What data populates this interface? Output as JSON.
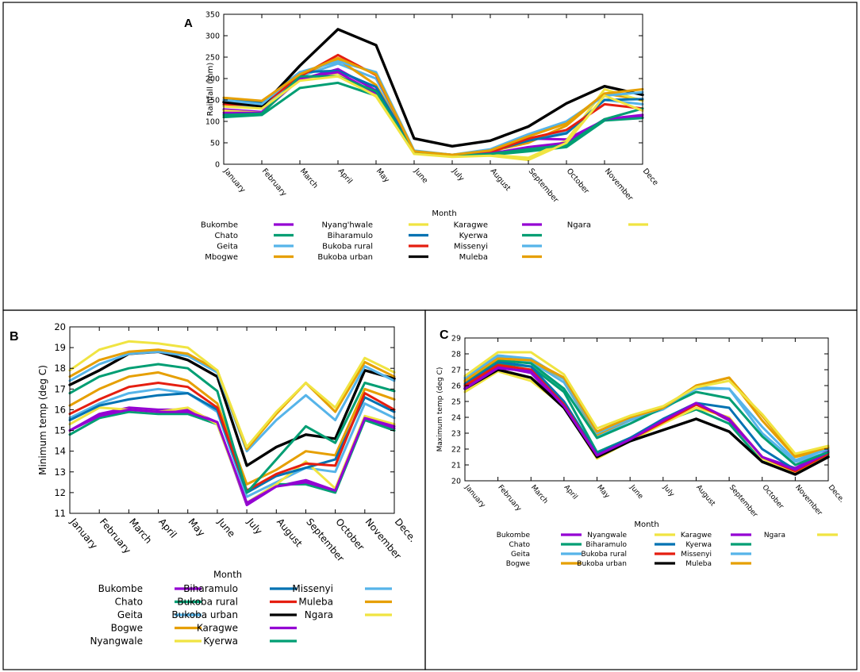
{
  "figure": {
    "colors": {
      "purple": "#9400d3",
      "green": "#009e73",
      "skyblue": "#56b4e9",
      "orange": "#e69f00",
      "yellow": "#f0e442",
      "blue": "#0072b2",
      "red": "#e51e10",
      "black": "#000000"
    }
  },
  "chart_data": [
    {
      "id": "A",
      "type": "line",
      "panel_label": "A",
      "ylabel": "Rainfall (mm)",
      "xlabel": "Month",
      "ylim": [
        0,
        350
      ],
      "yticks": [
        0,
        50,
        100,
        150,
        200,
        250,
        300,
        350
      ],
      "categories": [
        "January",
        "February",
        "March",
        "April",
        "May",
        "June",
        "July",
        "August",
        "September",
        "October",
        "November",
        "Dece"
      ],
      "legend_columns": [
        [
          "Bukombe",
          "Chato",
          "Geita",
          "Mbogwe"
        ],
        [
          "Nyang'hwale",
          "Biharamulo",
          "Bukoba rural",
          "Bukoba urban"
        ],
        [
          "Karagwe",
          "Kyerwa",
          "Missenyi",
          "Muleba"
        ],
        [
          "Ngara"
        ]
      ],
      "series": [
        {
          "name": "Bukombe",
          "color": "purple",
          "values": [
            128,
            122,
            198,
            222,
            172,
            28,
            20,
            26,
            60,
            58,
            103,
            110
          ]
        },
        {
          "name": "Chato",
          "color": "green",
          "values": [
            110,
            115,
            178,
            190,
            160,
            27,
            20,
            22,
            30,
            40,
            102,
            108
          ]
        },
        {
          "name": "Geita",
          "color": "skyblue",
          "values": [
            138,
            130,
            205,
            235,
            200,
            30,
            20,
            30,
            55,
            75,
            150,
            140
          ]
        },
        {
          "name": "Mbogwe",
          "color": "orange",
          "values": [
            145,
            140,
            208,
            245,
            185,
            28,
            21,
            30,
            50,
            90,
            165,
            150
          ]
        },
        {
          "name": "Nyang'hwale",
          "color": "yellow",
          "values": [
            125,
            120,
            200,
            212,
            158,
            25,
            18,
            22,
            15,
            55,
            175,
            148
          ]
        },
        {
          "name": "Biharamulo",
          "color": "blue",
          "values": [
            150,
            145,
            215,
            218,
            180,
            30,
            22,
            30,
            55,
            72,
            150,
            152
          ]
        },
        {
          "name": "Bukoba rural",
          "color": "red",
          "values": [
            140,
            138,
            205,
            255,
            208,
            30,
            22,
            28,
            60,
            80,
            140,
            130
          ]
        },
        {
          "name": "Bukoba urban",
          "color": "black",
          "values": [
            145,
            135,
            230,
            315,
            278,
            60,
            42,
            55,
            88,
            142,
            182,
            162
          ]
        },
        {
          "name": "Karagwe",
          "color": "purple",
          "values": [
            120,
            120,
            200,
            215,
            165,
            26,
            19,
            25,
            40,
            50,
            105,
            115
          ]
        },
        {
          "name": "Kyerwa",
          "color": "green",
          "values": [
            115,
            118,
            205,
            205,
            170,
            27,
            19,
            24,
            35,
            45,
            105,
            130
          ]
        },
        {
          "name": "Missenyi",
          "color": "skyblue",
          "values": [
            150,
            140,
            215,
            240,
            215,
            32,
            22,
            35,
            70,
            100,
            160,
            168
          ]
        },
        {
          "name": "Muleba",
          "color": "orange",
          "values": [
            155,
            148,
            210,
            248,
            210,
            30,
            22,
            32,
            65,
            95,
            165,
            175
          ]
        },
        {
          "name": "Ngara",
          "color": "yellow",
          "values": [
            135,
            130,
            195,
            205,
            160,
            24,
            17,
            20,
            10,
            50,
            160,
            125
          ]
        }
      ]
    },
    {
      "id": "B",
      "type": "line",
      "panel_label": "B",
      "ylabel": "Minimum temp (deg C)",
      "xlabel": "Month",
      "ylim": [
        11,
        20
      ],
      "yticks": [
        11,
        12,
        13,
        14,
        15,
        16,
        17,
        18,
        19,
        20
      ],
      "categories": [
        "January",
        "February",
        "March",
        "April",
        "May",
        "June",
        "July",
        "August",
        "September",
        "October",
        "November",
        "Dece."
      ],
      "legend_columns": [
        [
          "Bukombe",
          "Chato",
          "Geita",
          "Bogwe",
          "Nyangwale"
        ],
        [
          "Biharamulo",
          "Bukoba rural",
          "Bukoba urban",
          "Karagwe",
          "Kyerwa"
        ],
        [
          "Missenyi",
          "Muleba",
          "Ngara"
        ]
      ],
      "series": [
        {
          "name": "Bukombe",
          "color": "purple",
          "values": [
            15.0,
            15.8,
            16.1,
            16.0,
            16.0,
            15.4,
            11.4,
            12.3,
            12.6,
            12.1,
            15.6,
            15.1
          ]
        },
        {
          "name": "Chato",
          "color": "green",
          "values": [
            14.8,
            15.6,
            15.9,
            15.8,
            15.8,
            15.3,
            11.5,
            12.4,
            12.4,
            12.0,
            15.5,
            15.0
          ]
        },
        {
          "name": "Geita",
          "color": "skyblue",
          "values": [
            15.6,
            16.3,
            16.8,
            17.0,
            16.8,
            15.9,
            11.8,
            12.5,
            13.2,
            13.0,
            16.3,
            15.6
          ]
        },
        {
          "name": "Bogwe",
          "color": "orange",
          "values": [
            16.2,
            17.0,
            17.6,
            17.8,
            17.4,
            16.3,
            12.4,
            13.1,
            14.0,
            13.8,
            17.0,
            16.5
          ]
        },
        {
          "name": "Nyangwale",
          "color": "yellow",
          "values": [
            15.3,
            16.1,
            16.0,
            15.9,
            16.1,
            15.3,
            11.5,
            12.4,
            13.5,
            12.2,
            15.7,
            15.3
          ]
        },
        {
          "name": "Biharamulo",
          "color": "blue",
          "values": [
            15.5,
            16.2,
            16.5,
            16.7,
            16.8,
            16.0,
            12.0,
            12.8,
            13.2,
            13.6,
            16.6,
            15.9
          ]
        },
        {
          "name": "Bukoba rural",
          "color": "red",
          "values": [
            15.8,
            16.5,
            17.1,
            17.3,
            17.1,
            16.1,
            12.1,
            12.9,
            13.4,
            13.3,
            16.8,
            16.0
          ]
        },
        {
          "name": "Bukoba urban",
          "color": "black",
          "values": [
            17.2,
            17.9,
            18.7,
            18.8,
            18.4,
            17.6,
            13.3,
            14.2,
            14.8,
            14.6,
            17.9,
            17.5
          ]
        },
        {
          "name": "Karagwe",
          "color": "purple",
          "values": [
            15.0,
            15.7,
            16.0,
            15.9,
            15.9,
            15.4,
            11.5,
            12.3,
            12.5,
            12.1,
            15.6,
            15.2
          ]
        },
        {
          "name": "Kyerwa",
          "color": "green",
          "values": [
            16.8,
            17.6,
            18.0,
            18.2,
            18.0,
            16.9,
            12.0,
            13.6,
            15.2,
            14.4,
            17.3,
            16.9
          ]
        },
        {
          "name": "Missenyi",
          "color": "skyblue",
          "values": [
            17.4,
            18.2,
            18.7,
            18.8,
            18.6,
            17.8,
            14.0,
            15.5,
            16.7,
            15.5,
            18.1,
            17.4
          ]
        },
        {
          "name": "Muleba",
          "color": "orange",
          "values": [
            17.6,
            18.4,
            18.8,
            18.9,
            18.7,
            17.9,
            14.1,
            15.8,
            17.3,
            15.9,
            18.3,
            17.6
          ]
        },
        {
          "name": "Ngara",
          "color": "yellow",
          "values": [
            17.9,
            18.9,
            19.3,
            19.2,
            19.0,
            17.9,
            14.2,
            15.9,
            17.3,
            16.1,
            18.5,
            17.8
          ]
        }
      ]
    },
    {
      "id": "C",
      "type": "line",
      "panel_label": "C",
      "ylabel": "Maximum temp (deg C)",
      "xlabel": "Month",
      "ylim": [
        20,
        29
      ],
      "yticks": [
        20,
        21,
        22,
        23,
        24,
        25,
        26,
        27,
        28,
        29
      ],
      "categories": [
        "January",
        "February",
        "March",
        "April",
        "May",
        "June",
        "July",
        "August",
        "September",
        "October",
        "November",
        "Dece."
      ],
      "legend_columns": [
        [
          "Bukombe",
          "Chato",
          "Geita",
          "Bogwe"
        ],
        [
          "Nyangwale",
          "Biharamulo",
          "Bukoba rural",
          "Bukoba urban"
        ],
        [
          "Karagwe",
          "Kyerwa",
          "Missenyi",
          "Muleba"
        ],
        [
          "Ngara"
        ]
      ],
      "series": [
        {
          "name": "Bukombe",
          "color": "purple",
          "values": [
            25.9,
            27.2,
            26.8,
            24.6,
            21.6,
            22.6,
            23.8,
            24.9,
            23.8,
            21.5,
            20.8,
            21.9
          ]
        },
        {
          "name": "Chato",
          "color": "green",
          "values": [
            26.0,
            27.4,
            27.2,
            25.6,
            21.8,
            22.7,
            23.7,
            24.5,
            23.6,
            21.2,
            20.6,
            21.6
          ]
        },
        {
          "name": "Geita",
          "color": "skyblue",
          "values": [
            26.4,
            27.8,
            27.5,
            26.2,
            22.8,
            23.8,
            24.5,
            25.8,
            25.8,
            23.0,
            21.2,
            21.8
          ]
        },
        {
          "name": "Bogwe",
          "color": "orange",
          "values": [
            26.2,
            27.7,
            27.6,
            26.4,
            22.9,
            23.9,
            24.6,
            26.0,
            26.5,
            23.8,
            21.5,
            22.0
          ]
        },
        {
          "name": "Nyangwale",
          "color": "yellow",
          "values": [
            25.6,
            26.9,
            26.3,
            24.7,
            21.4,
            22.5,
            23.6,
            24.6,
            24.0,
            21.4,
            20.5,
            21.5
          ]
        },
        {
          "name": "Biharamulo",
          "color": "blue",
          "values": [
            26.1,
            27.5,
            27.2,
            25.0,
            21.7,
            22.7,
            23.9,
            24.9,
            24.6,
            22.0,
            20.7,
            21.8
          ]
        },
        {
          "name": "Bukoba rural",
          "color": "red",
          "values": [
            26.0,
            27.3,
            27.0,
            24.8,
            21.6,
            22.6,
            23.7,
            24.8,
            23.9,
            21.5,
            20.6,
            21.7
          ]
        },
        {
          "name": "Bukoba urban",
          "color": "black",
          "values": [
            25.8,
            27.0,
            26.5,
            24.6,
            21.5,
            22.5,
            23.2,
            23.9,
            23.1,
            21.2,
            20.4,
            21.5
          ]
        },
        {
          "name": "Karagwe",
          "color": "purple",
          "values": [
            25.8,
            27.1,
            26.9,
            24.7,
            21.6,
            22.6,
            23.8,
            24.9,
            23.9,
            21.5,
            20.7,
            21.8
          ]
        },
        {
          "name": "Kyerwa",
          "color": "green",
          "values": [
            26.3,
            27.6,
            27.4,
            25.8,
            22.7,
            23.6,
            24.6,
            25.6,
            25.2,
            22.8,
            21.0,
            21.8
          ]
        },
        {
          "name": "Missenyi",
          "color": "skyblue",
          "values": [
            26.5,
            27.9,
            27.7,
            26.4,
            23.0,
            23.9,
            24.6,
            25.9,
            25.8,
            23.4,
            21.3,
            22.0
          ]
        },
        {
          "name": "Muleba",
          "color": "orange",
          "values": [
            26.3,
            27.7,
            27.6,
            26.5,
            23.1,
            24.0,
            24.6,
            26.0,
            26.5,
            24.1,
            21.6,
            22.1
          ]
        },
        {
          "name": "Ngara",
          "color": "yellow",
          "values": [
            26.6,
            28.1,
            28.1,
            26.7,
            23.3,
            24.1,
            24.7,
            25.9,
            26.3,
            24.2,
            21.7,
            22.2
          ]
        }
      ]
    }
  ]
}
